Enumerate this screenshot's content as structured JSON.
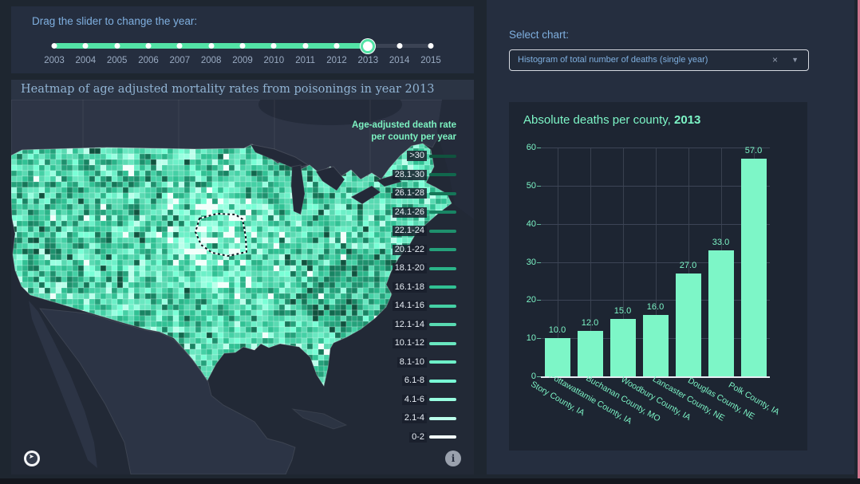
{
  "colors": {
    "accent_mint": "#7df6c7",
    "slider_green": "#53e3a6",
    "heading_blue": "#7fafdf",
    "page_bg": "#1e2630",
    "card_bg": "#252e3f",
    "chart_bg": "#1d2532"
  },
  "slider": {
    "label": "Drag the slider to change the year:",
    "years": [
      "2003",
      "2004",
      "2005",
      "2006",
      "2007",
      "2008",
      "2009",
      "2010",
      "2011",
      "2012",
      "2013",
      "2014",
      "2015"
    ],
    "selected_year": "2013",
    "selected_index": 10
  },
  "map": {
    "title": "Heatmap of age adjusted mortality rates from poisonings in year 2013",
    "legend": {
      "title_line1": "Age-adjusted death rate",
      "title_line2": "per county per year",
      "bins": [
        {
          "label": ">30",
          "color": "#10523e"
        },
        {
          "label": "28.1-30",
          "color": "#11684d"
        },
        {
          "label": "26.1-28",
          "color": "#157658"
        },
        {
          "label": "24.1-26",
          "color": "#188463"
        },
        {
          "label": "22.1-24",
          "color": "#1e906d"
        },
        {
          "label": "20.1-22",
          "color": "#25a27b"
        },
        {
          "label": "18.1-20",
          "color": "#2bb489"
        },
        {
          "label": "16.1-18",
          "color": "#31c194"
        },
        {
          "label": "14.1-16",
          "color": "#45d0a5"
        },
        {
          "label": "12.1-14",
          "color": "#59dab2"
        },
        {
          "label": "10.1-12",
          "color": "#69e7c0"
        },
        {
          "label": "8.1-10",
          "color": "#6df0c8"
        },
        {
          "label": "6.1-8",
          "color": "#79ffd6"
        },
        {
          "label": "4.1-6",
          "color": "#98ffe0"
        },
        {
          "label": "2.1-4",
          "color": "#bbffeb"
        },
        {
          "label": "0-2",
          "color": "#f2fffb"
        }
      ]
    },
    "icons": {
      "mapbox_logo": "mapbox-logo",
      "info": "info"
    }
  },
  "select_panel": {
    "label": "Select chart:",
    "dropdown": {
      "value": "Histogram of total number of deaths (single year)",
      "clear_icon": "×",
      "caret_icon": "▼"
    }
  },
  "chart_data": {
    "type": "bar",
    "title_prefix": "Absolute deaths per county, ",
    "title_year": "2013",
    "categories": [
      "Story County, IA",
      "Pottawattamie County, IA",
      "Buchanan County, MO",
      "Woodbury County, IA",
      "Lancaster County, NE",
      "Douglas County, NE",
      "Polk County, IA"
    ],
    "values": [
      10,
      12,
      15,
      16,
      27,
      33,
      57
    ],
    "value_labels": [
      "10.0",
      "12.0",
      "15.0",
      "16.0",
      "27.0",
      "33.0",
      "57.0"
    ],
    "ylim": [
      0,
      60
    ],
    "yticks": [
      0,
      10,
      20,
      30,
      40,
      50,
      60
    ],
    "bar_color": "#7df6c7",
    "grid": "on",
    "legend_position": "none"
  }
}
